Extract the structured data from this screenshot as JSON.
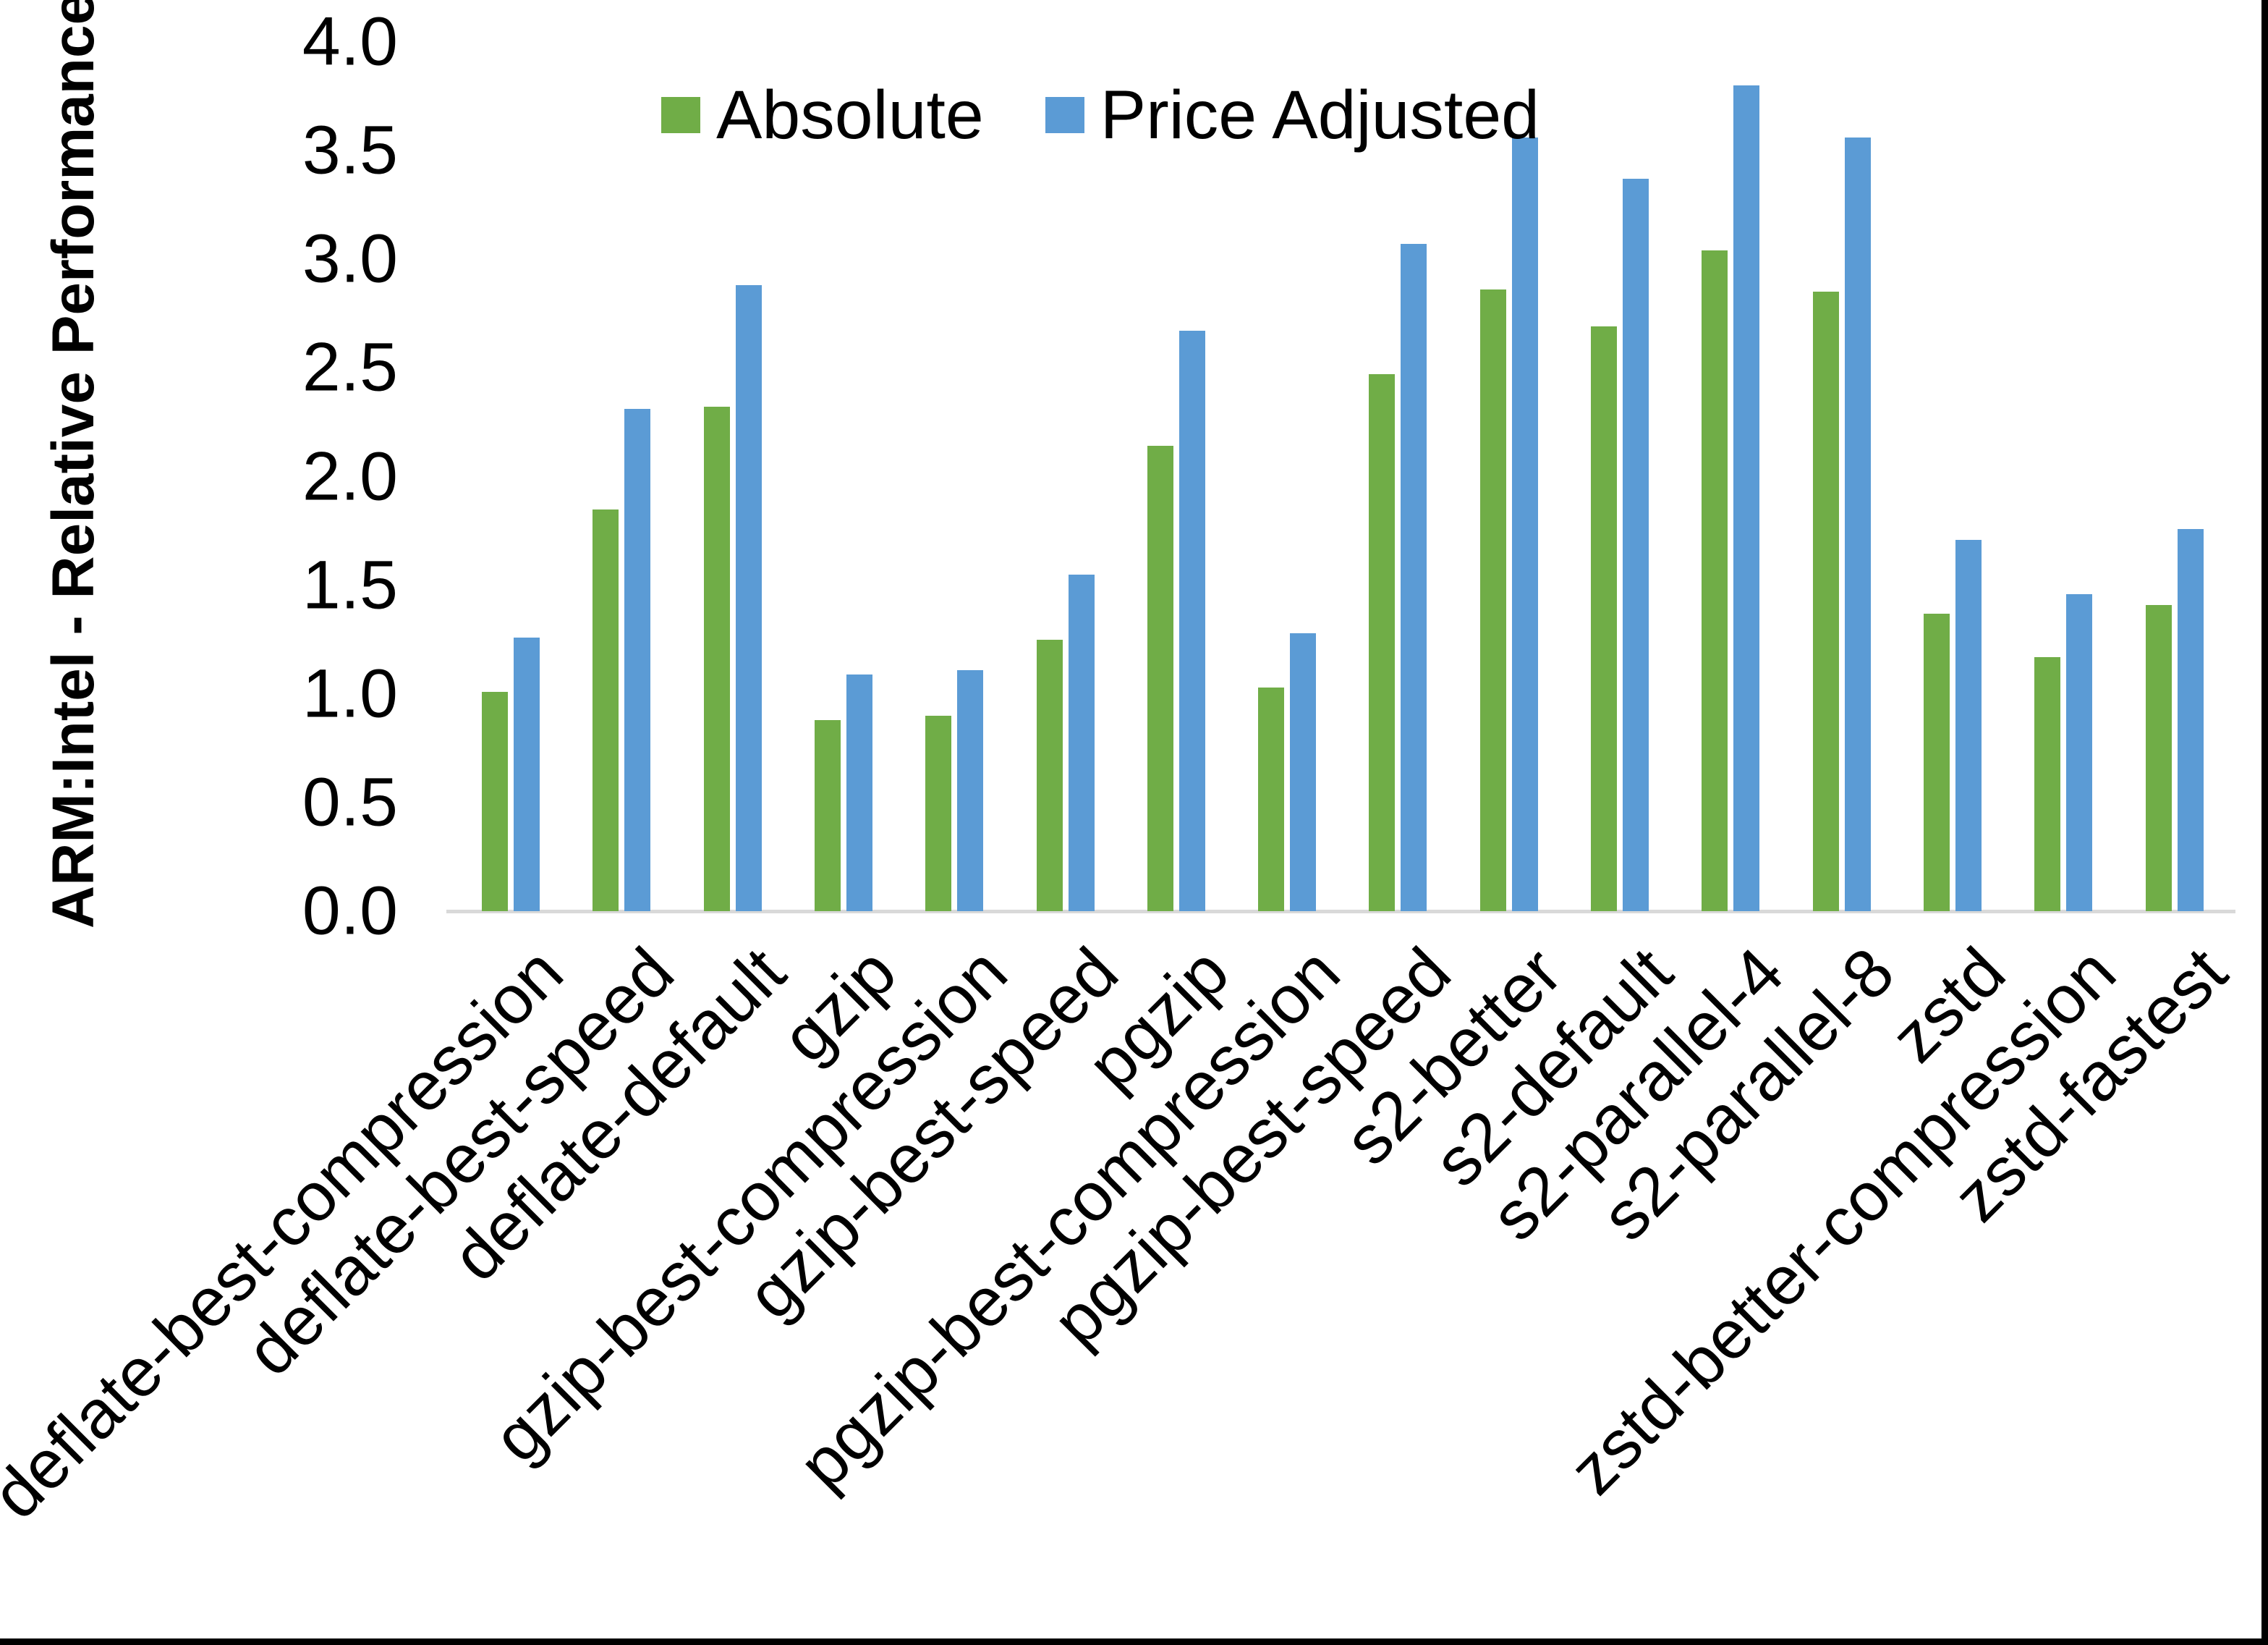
{
  "colors": {
    "absolute": "#70AD47",
    "price_adjusted": "#5B9BD5",
    "axis_line": "#D9D9D9",
    "text": "#000000",
    "frame": "#000000"
  },
  "legend": {
    "absolute_label": "Absolute",
    "price_adjusted_label": "Price Adjusted"
  },
  "y_axis": {
    "title": "ARM:Intel - Relative Performance",
    "tick_labels": [
      "0.0",
      "0.5",
      "1.0",
      "1.5",
      "2.0",
      "2.5",
      "3.0",
      "3.5",
      "4.0"
    ]
  },
  "chart_data": {
    "type": "bar",
    "title": "",
    "xlabel": "",
    "ylabel": "ARM:Intel - Relative Performance",
    "ylim": [
      0.0,
      4.0
    ],
    "ytick_step": 0.5,
    "grid": false,
    "legend_position": "top-center",
    "categories": [
      "deflate-best-compression",
      "deflate-best-speed",
      "deflate-default",
      "gzip",
      "gzip-best-compression",
      "gzip-best-speed",
      "pgzip",
      "pgzip-best-compression",
      "pgzip-best-speed",
      "s2-better",
      "s2-default",
      "s2-parallel-4",
      "s2-parallel-8",
      "zstd",
      "zstd-better-compression",
      "zstd-fastest"
    ],
    "series": [
      {
        "name": "Absolute",
        "color": "#70AD47",
        "values": [
          1.01,
          1.85,
          2.32,
          0.88,
          0.9,
          1.25,
          2.14,
          1.03,
          2.47,
          2.86,
          2.69,
          3.04,
          2.85,
          1.37,
          1.17,
          1.41
        ]
      },
      {
        "name": "Price Adjusted",
        "color": "#5B9BD5",
        "values": [
          1.26,
          2.31,
          2.88,
          1.09,
          1.11,
          1.55,
          2.67,
          1.28,
          3.07,
          3.56,
          3.37,
          3.8,
          3.56,
          1.71,
          1.46,
          1.76
        ]
      }
    ]
  }
}
